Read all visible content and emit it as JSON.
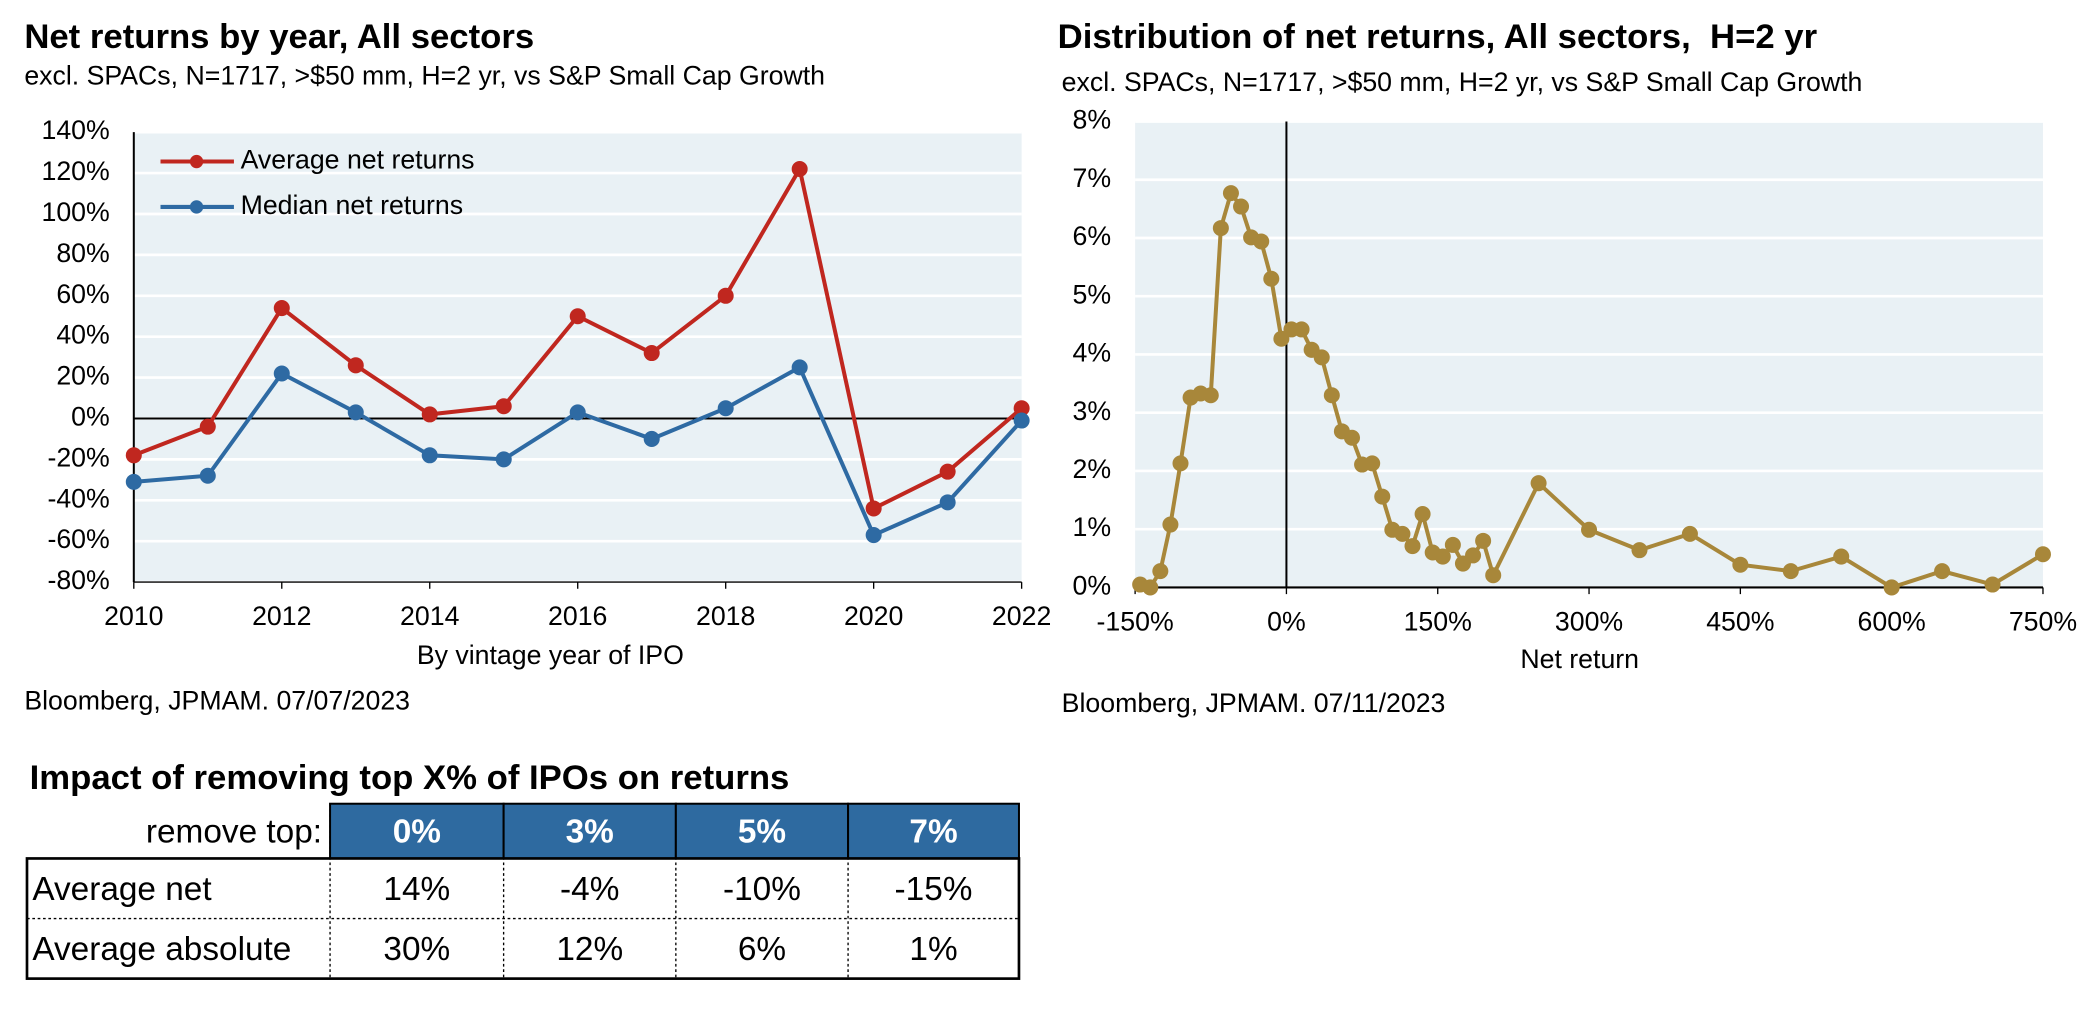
{
  "chart_data": [
    {
      "type": "line",
      "title": "Net returns by year, All sectors",
      "subtitle": "excl. SPACs, N=1717, >$50 mm, H=2 yr, vs S&P Small Cap Growth",
      "x_label": "By vintage year of IPO",
      "source": "Bloomberg, JPMAM. 07/07/2023",
      "x": [
        2010,
        2011,
        2012,
        2013,
        2014,
        2015,
        2016,
        2017,
        2018,
        2019,
        2020,
        2021,
        2022
      ],
      "series": [
        {
          "name": "Average net returns",
          "color": "#c0271f",
          "values": [
            -18,
            -4,
            54,
            26,
            2,
            6,
            50,
            32,
            60,
            122,
            -44,
            -26,
            5
          ]
        },
        {
          "name": "Median net returns",
          "color": "#2e6aa3",
          "values": [
            -31,
            -28,
            22,
            3,
            -18,
            -20,
            3,
            -10,
            5,
            25,
            -57,
            -41,
            -1
          ]
        }
      ],
      "xlim": [
        2010,
        2022
      ],
      "xticks": [
        2010,
        2012,
        2014,
        2016,
        2018,
        2020,
        2022
      ],
      "ylim": [
        -80,
        140
      ],
      "yticks": [
        {
          "value": -80,
          "label": "-80%"
        },
        {
          "value": -60,
          "label": "-60%"
        },
        {
          "value": -40,
          "label": "-40%"
        },
        {
          "value": -20,
          "label": "-20%"
        },
        {
          "value": 0,
          "label": "0%"
        },
        {
          "value": 20,
          "label": "20%"
        },
        {
          "value": 40,
          "label": "40%"
        },
        {
          "value": 60,
          "label": "60%"
        },
        {
          "value": 80,
          "label": "80%"
        },
        {
          "value": 100,
          "label": "100%"
        },
        {
          "value": 120,
          "label": "120%"
        },
        {
          "value": 140,
          "label": "140%"
        }
      ],
      "grid": true,
      "legend": "top-left"
    },
    {
      "type": "line",
      "title": "Distribution of net returns, All sectors,  H=2 yr",
      "subtitle": "excl. SPACs, N=1717, >$50 mm, H=2 yr, vs S&P Small Cap Growth",
      "x_label": "Net return",
      "source": "Bloomberg, JPMAM. 07/11/2023",
      "x": [
        -145,
        -135,
        -125,
        -115,
        -105,
        -95,
        -85,
        -75,
        -65,
        -55,
        -45,
        -35,
        -25,
        -15,
        -5,
        5,
        15,
        25,
        35,
        45,
        55,
        65,
        75,
        85,
        95,
        105,
        115,
        125,
        135,
        145,
        155,
        165,
        175,
        185,
        195,
        205,
        250,
        300,
        350,
        400,
        450,
        500,
        550,
        600,
        650,
        700,
        750
      ],
      "series": [
        {
          "color": "#a8873a",
          "values": [
            0.05,
            0,
            0.28,
            1.08,
            2.13,
            3.26,
            3.33,
            3.3,
            6.17,
            6.77,
            6.54,
            6.01,
            5.94,
            5.3,
            4.27,
            4.43,
            4.43,
            4.08,
            3.95,
            3.3,
            2.68,
            2.57,
            2.11,
            2.13,
            1.56,
            0.99,
            0.92,
            0.71,
            1.26,
            0.6,
            0.53,
            0.73,
            0.41,
            0.55,
            0.8,
            0.21,
            1.79,
            0.99,
            0.64,
            0.92,
            0.39,
            0.28,
            0.53,
            0,
            0.28,
            0.05,
            0.57
          ]
        }
      ],
      "xlim": [
        -150,
        750
      ],
      "xticks": [
        {
          "value": -150,
          "label": "-150%"
        },
        {
          "value": 0,
          "label": "0%"
        },
        {
          "value": 150,
          "label": "150%"
        },
        {
          "value": 300,
          "label": "300%"
        },
        {
          "value": 450,
          "label": "450%"
        },
        {
          "value": 600,
          "label": "600%"
        },
        {
          "value": 750,
          "label": "750%"
        }
      ],
      "ylim": [
        0,
        8
      ],
      "yticks": [
        {
          "value": 0,
          "label": "0%"
        },
        {
          "value": 1,
          "label": "1%"
        },
        {
          "value": 2,
          "label": "2%"
        },
        {
          "value": 3,
          "label": "3%"
        },
        {
          "value": 4,
          "label": "4%"
        },
        {
          "value": 5,
          "label": "5%"
        },
        {
          "value": 6,
          "label": "6%"
        },
        {
          "value": 7,
          "label": "7%"
        },
        {
          "value": 8,
          "label": "8%"
        }
      ],
      "grid": true
    }
  ],
  "table": {
    "title": "Impact of removing top X% of IPOs on returns",
    "header": [
      "remove top:",
      "0%",
      "3%",
      "5%",
      "7%"
    ],
    "rows": [
      [
        "Average net",
        "14%",
        "-4%",
        "-10%",
        "-15%"
      ],
      [
        "Average absolute",
        "30%",
        "12%",
        "6%",
        "1%"
      ]
    ]
  }
}
